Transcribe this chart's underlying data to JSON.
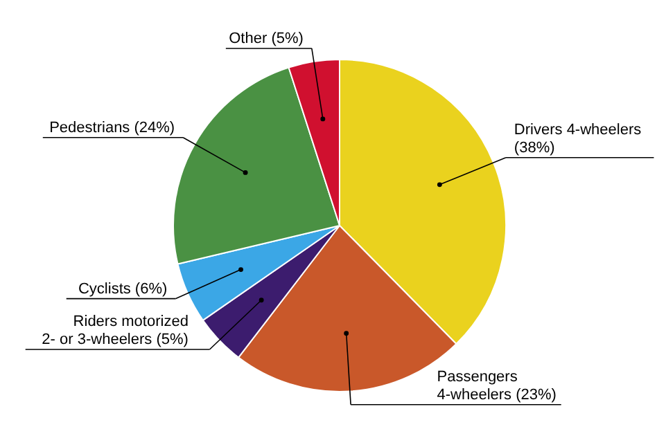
{
  "chart_data": {
    "type": "pie",
    "categories": [
      "Drivers 4-wheelers (38%)",
      "Passengers 4-wheelers (23%)",
      "Riders motorized 2- or 3-wheelers (5%)",
      "Cyclists (6%)",
      "Pedestrians (24%)",
      "Other (5%)"
    ],
    "values": [
      38,
      23,
      5,
      6,
      24,
      5
    ],
    "colors": [
      "#ead21e",
      "#c9582a",
      "#3c1c6e",
      "#3ba7e6",
      "#4a9143",
      "#d0102f"
    ]
  }
}
